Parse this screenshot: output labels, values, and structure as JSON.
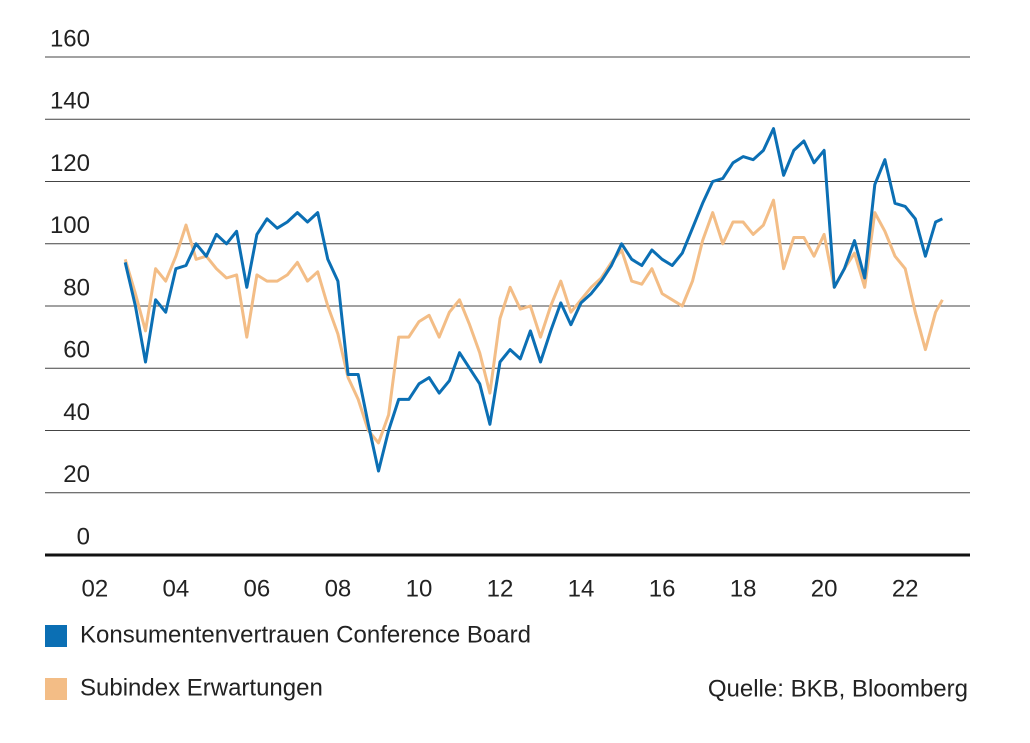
{
  "chart_data": {
    "type": "line",
    "x": [
      2002.75,
      2003.0,
      2003.25,
      2003.5,
      2003.75,
      2004.0,
      2004.25,
      2004.5,
      2004.75,
      2005.0,
      2005.25,
      2005.5,
      2005.75,
      2006.0,
      2006.25,
      2006.5,
      2006.75,
      2007.0,
      2007.25,
      2007.5,
      2007.75,
      2008.0,
      2008.25,
      2008.5,
      2008.75,
      2009.0,
      2009.25,
      2009.5,
      2009.75,
      2010.0,
      2010.25,
      2010.5,
      2010.75,
      2011.0,
      2011.25,
      2011.5,
      2011.75,
      2012.0,
      2012.25,
      2012.5,
      2012.75,
      2013.0,
      2013.25,
      2013.5,
      2013.75,
      2014.0,
      2014.25,
      2014.5,
      2014.75,
      2015.0,
      2015.25,
      2015.5,
      2015.75,
      2016.0,
      2016.25,
      2016.5,
      2016.75,
      2017.0,
      2017.25,
      2017.5,
      2017.75,
      2018.0,
      2018.25,
      2018.5,
      2018.75,
      2019.0,
      2019.25,
      2019.5,
      2019.75,
      2020.0,
      2020.25,
      2020.5,
      2020.75,
      2021.0,
      2021.25,
      2021.5,
      2021.75,
      2022.0,
      2022.25,
      2022.5,
      2022.75,
      2022.92
    ],
    "series": [
      {
        "name": "Konsumentenvertrauen Conference Board",
        "color": "#0b6fb4",
        "values": [
          94,
          80,
          62,
          82,
          78,
          92,
          93,
          100,
          96,
          103,
          100,
          104,
          86,
          103,
          108,
          105,
          107,
          110,
          107,
          110,
          95,
          88,
          58,
          58,
          42,
          27,
          40,
          50,
          50,
          55,
          57,
          52,
          56,
          65,
          60,
          55,
          42,
          62,
          66,
          63,
          72,
          62,
          72,
          81,
          74,
          81,
          84,
          88,
          93,
          100,
          95,
          93,
          98,
          95,
          93,
          97,
          105,
          113,
          120,
          121,
          126,
          128,
          127,
          130,
          137,
          122,
          130,
          133,
          126,
          130,
          86,
          92,
          101,
          89,
          119,
          127,
          113,
          112,
          108,
          96,
          107,
          108
        ]
      },
      {
        "name": "Subindex Erwartungen",
        "color": "#f3bd86",
        "values": [
          95,
          84,
          72,
          92,
          88,
          96,
          106,
          95,
          96,
          92,
          89,
          90,
          70,
          90,
          88,
          88,
          90,
          94,
          88,
          91,
          80,
          71,
          57,
          50,
          40,
          36,
          45,
          70,
          70,
          75,
          77,
          70,
          78,
          82,
          74,
          65,
          52,
          76,
          86,
          79,
          80,
          70,
          80,
          88,
          78,
          82,
          86,
          89,
          94,
          98,
          88,
          87,
          92,
          84,
          82,
          80,
          88,
          101,
          110,
          100,
          107,
          107,
          103,
          106,
          114,
          92,
          102,
          102,
          96,
          103,
          86,
          92,
          97,
          86,
          110,
          104,
          96,
          92,
          78,
          66,
          78,
          82
        ]
      }
    ],
    "xlim": [
      2000.77,
      2023.6
    ],
    "xticks": [
      {
        "value": 2002,
        "label": "02"
      },
      {
        "value": 2004,
        "label": "04"
      },
      {
        "value": 2006,
        "label": "06"
      },
      {
        "value": 2008,
        "label": "08"
      },
      {
        "value": 2010,
        "label": "10"
      },
      {
        "value": 2012,
        "label": "12"
      },
      {
        "value": 2014,
        "label": "14"
      },
      {
        "value": 2016,
        "label": "16"
      },
      {
        "value": 2018,
        "label": "18"
      },
      {
        "value": 2020,
        "label": "20"
      },
      {
        "value": 2022,
        "label": "22"
      }
    ],
    "ylim": [
      0,
      160
    ],
    "yticks": [
      0,
      20,
      40,
      60,
      80,
      100,
      120,
      140,
      160
    ],
    "grid": true,
    "legend": "bottom-left",
    "source": "Quelle: BKB, Bloomberg"
  }
}
